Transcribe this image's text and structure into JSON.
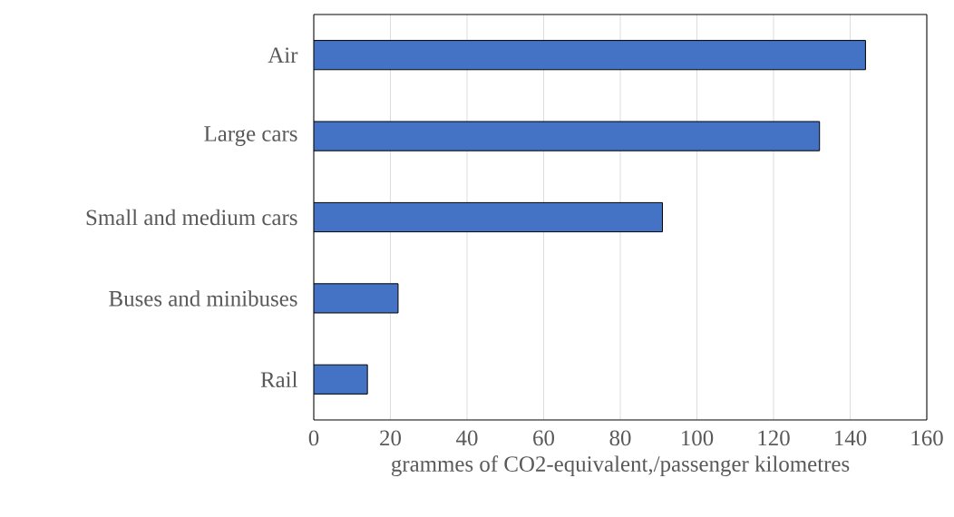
{
  "chart_data": {
    "type": "bar",
    "orientation": "horizontal",
    "categories": [
      "Air",
      "Large cars",
      "Small and medium cars",
      "Buses and minibuses",
      "Rail"
    ],
    "values": [
      144,
      132,
      91,
      22,
      14
    ],
    "color": "#4472c4",
    "xlabel": "grammes of CO2-equivalent,/passenger kilometres",
    "xlim": [
      0,
      160
    ],
    "xticks": [
      0,
      20,
      40,
      60,
      80,
      100,
      120,
      140,
      160
    ],
    "grid": "x"
  }
}
